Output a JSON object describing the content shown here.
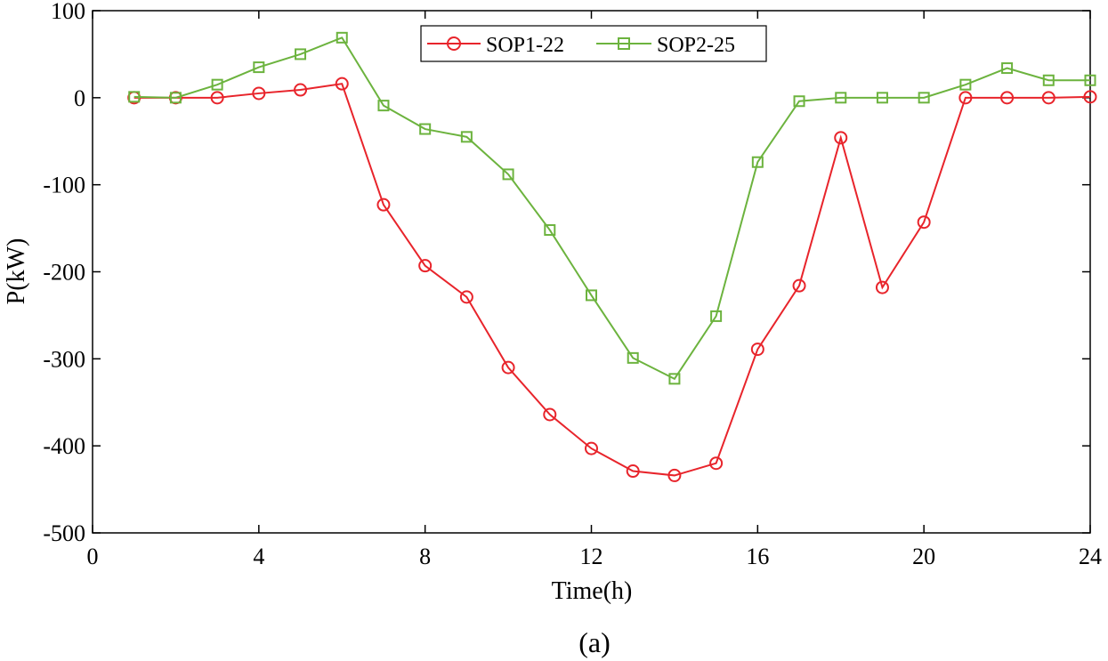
{
  "chart_data": {
    "type": "line",
    "title": "",
    "caption": "(a)",
    "xlabel": "Time(h)",
    "ylabel": "P(kW)",
    "xlim": [
      0,
      24
    ],
    "ylim": [
      -500,
      100
    ],
    "xticks": [
      0,
      4,
      8,
      12,
      16,
      20,
      24
    ],
    "yticks": [
      100,
      0,
      -100,
      -200,
      -300,
      -400,
      -500
    ],
    "grid": false,
    "legend_position": "top-center",
    "x": [
      1,
      2,
      3,
      4,
      5,
      6,
      7,
      8,
      9,
      10,
      11,
      12,
      13,
      14,
      15,
      16,
      17,
      18,
      19,
      20,
      21,
      22,
      23,
      24
    ],
    "series": [
      {
        "name": "SOP1-22",
        "color": "#e8242b",
        "marker": "circle",
        "values": [
          0,
          0,
          0,
          5,
          9,
          16,
          -123,
          -193,
          -229,
          -310,
          -364,
          -403,
          -429,
          -434,
          -420,
          -289,
          -216,
          -46,
          -218,
          -143,
          0,
          0,
          0,
          1
        ]
      },
      {
        "name": "SOP2-25",
        "color": "#6cb33e",
        "marker": "square",
        "values": [
          1,
          0,
          15,
          35,
          50,
          69,
          -9,
          -36,
          -45,
          -88,
          -152,
          -227,
          -299,
          -323,
          -251,
          -74,
          -4,
          0,
          0,
          0,
          15,
          34,
          20,
          20
        ]
      }
    ]
  }
}
